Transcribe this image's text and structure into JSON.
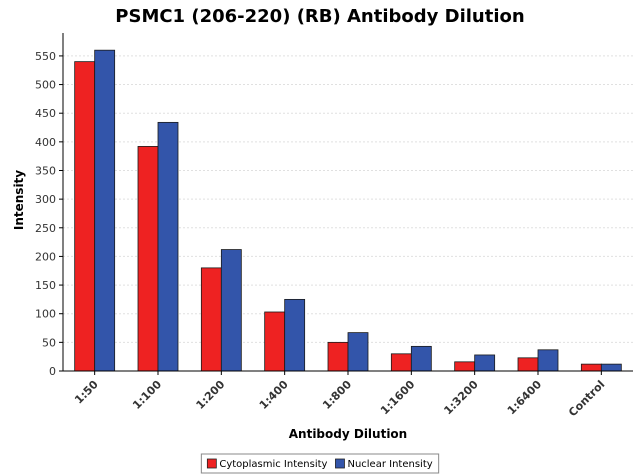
{
  "chart_data": {
    "type": "bar",
    "title": "PSMC1 (206-220) (RB) Antibody Dilution",
    "xlabel": "Antibody Dilution",
    "ylabel": "Intensity",
    "categories": [
      "1:50",
      "1:100",
      "1:200",
      "1:400",
      "1:800",
      "1:1600",
      "1:3200",
      "1:6400",
      "Control"
    ],
    "series": [
      {
        "name": "Cytoplasmic Intensity",
        "color": "#ee2222",
        "values": [
          540,
          392,
          180,
          103,
          50,
          30,
          16,
          23,
          12
        ]
      },
      {
        "name": "Nuclear Intensity",
        "color": "#3355aa",
        "values": [
          560,
          434,
          212,
          125,
          67,
          43,
          28,
          37,
          12
        ]
      }
    ],
    "ylim": [
      0,
      590
    ],
    "yticks": [
      0,
      50,
      100,
      150,
      200,
      250,
      300,
      350,
      400,
      450,
      500,
      550
    ],
    "grid": true,
    "legend_position": "bottom-center"
  }
}
